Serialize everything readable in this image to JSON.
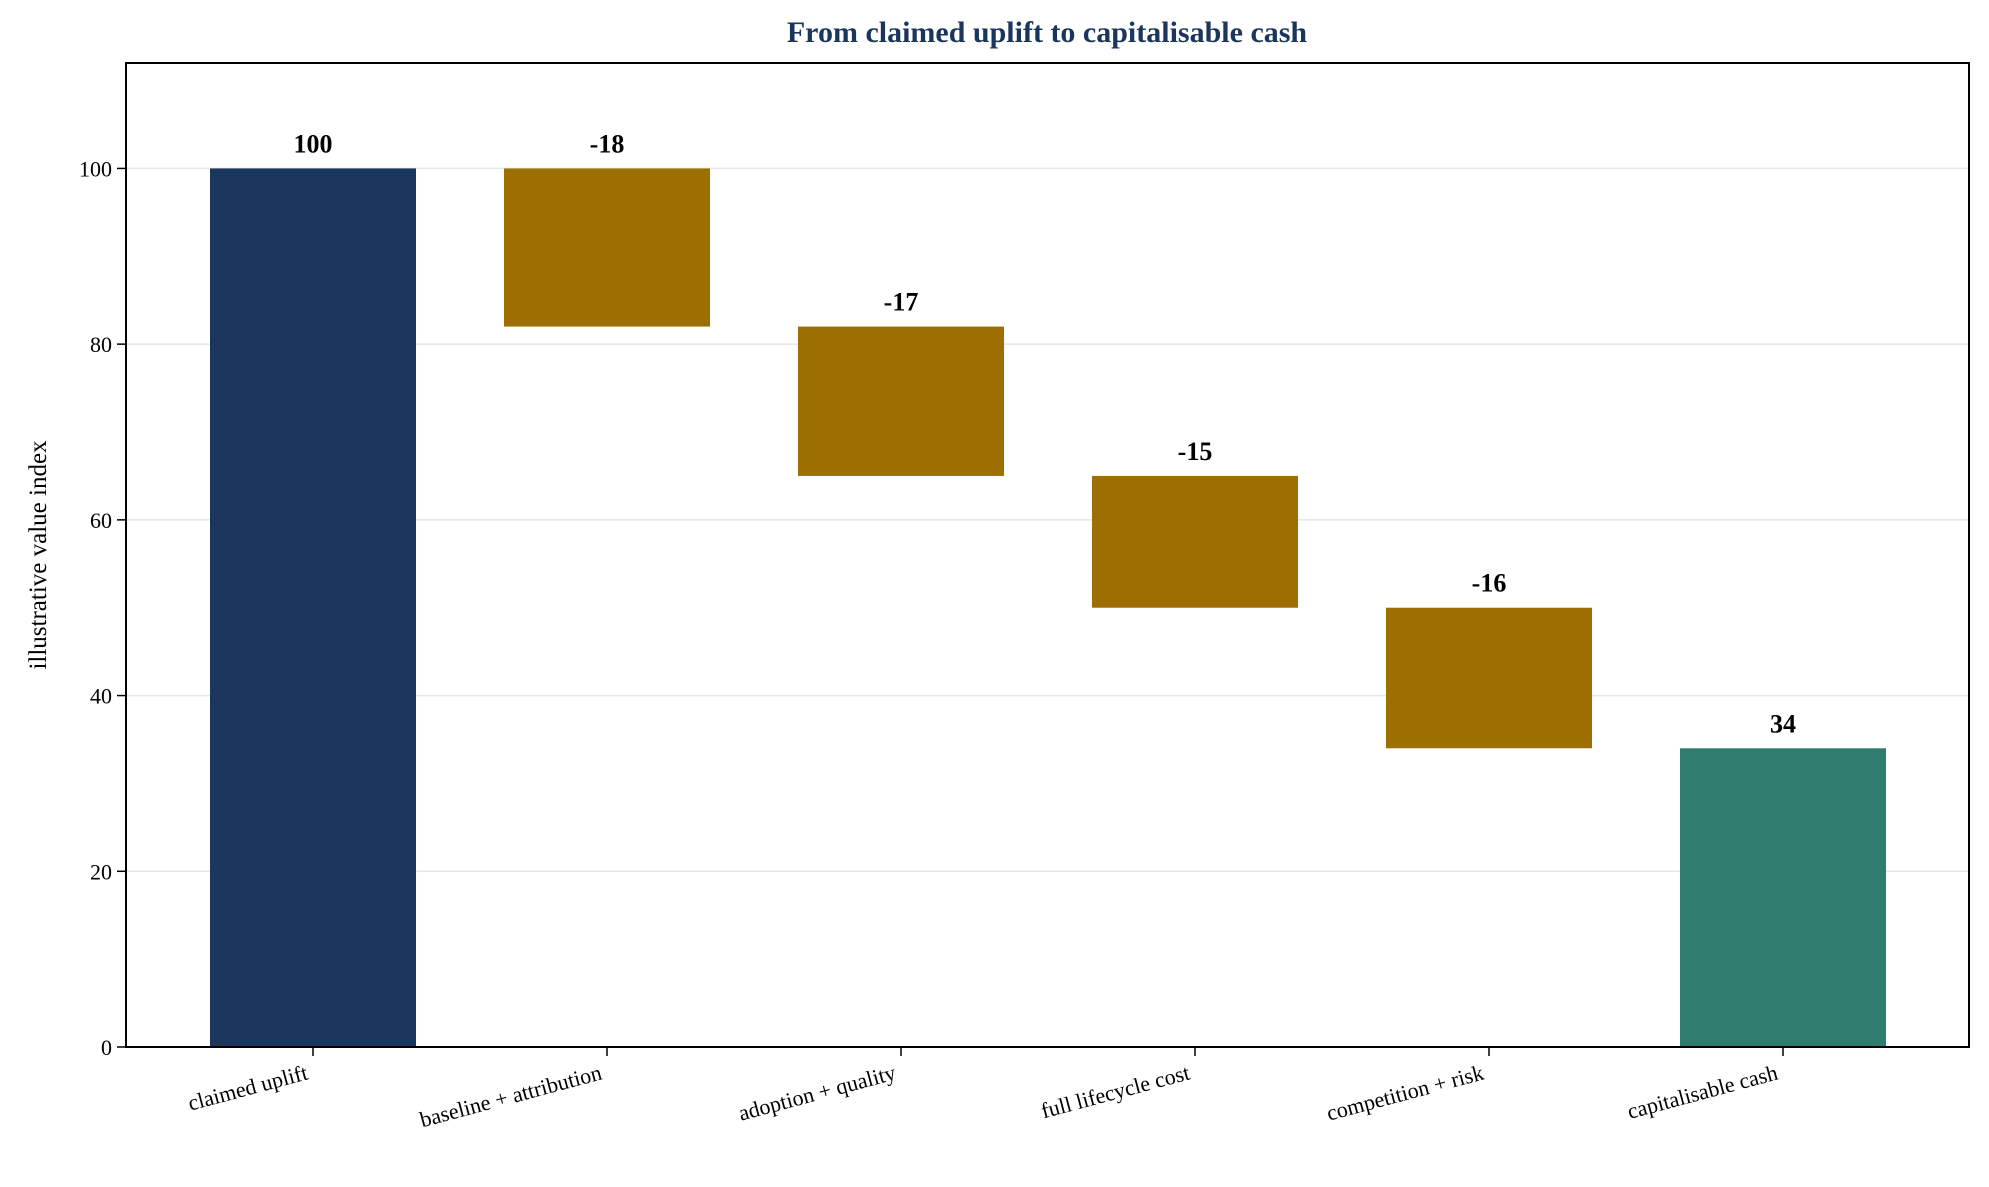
{
  "chart_data": {
    "type": "bar",
    "subtype": "waterfall",
    "title": "From claimed uplift to capitalisable cash",
    "xlabel": "",
    "ylabel": "illustrative value index",
    "ylim": [
      0,
      112
    ],
    "yticks": [
      0,
      20,
      40,
      60,
      80,
      100
    ],
    "grid": "horizontal",
    "legend": "none",
    "categories": [
      "claimed uplift",
      "baseline + attribution",
      "adoption + quality",
      "full lifecycle cost",
      "competition + risk",
      "capitalisable cash"
    ],
    "values": [
      100,
      -18,
      -17,
      -15,
      -16,
      34
    ],
    "value_labels": [
      "100",
      "-18",
      "-17",
      "-15",
      "-16",
      "34"
    ],
    "bar_kinds": [
      "total",
      "decrease",
      "decrease",
      "decrease",
      "decrease",
      "total"
    ],
    "colors": {
      "start_total": "#1a365d",
      "decrease": "#9c6f00",
      "end_total": "#2e7d6e",
      "title": "#1a365d",
      "grid": "#e6e6e6",
      "axis": "#000000"
    }
  }
}
